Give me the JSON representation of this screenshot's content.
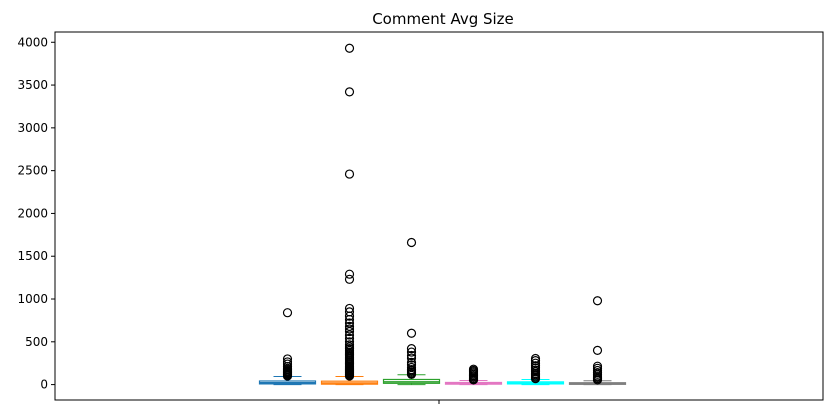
{
  "chart_data": {
    "type": "box",
    "title": "Comment Avg Size",
    "xlabel": "",
    "ylabel": "",
    "ylim": [
      -180,
      4120
    ],
    "yticks": [
      0,
      500,
      1000,
      1500,
      2000,
      2500,
      3000,
      3500,
      4000
    ],
    "xtick_labels": [
      ""
    ],
    "grid": false,
    "legend": "none",
    "series": [
      {
        "color": "#1f77b4",
        "whislo": 0,
        "q1": 8,
        "med": 22,
        "q3": 42,
        "whishi": 95,
        "fliers": [
          100,
          110,
          120,
          130,
          140,
          150,
          160,
          175,
          190,
          210,
          240,
          265,
          300,
          840
        ]
      },
      {
        "color": "#ff7f0e",
        "whislo": 0,
        "q1": 5,
        "med": 18,
        "q3": 40,
        "whishi": 95,
        "fliers": [
          100,
          110,
          120,
          130,
          140,
          150,
          160,
          170,
          180,
          190,
          200,
          215,
          230,
          245,
          260,
          275,
          290,
          305,
          320,
          335,
          350,
          365,
          380,
          400,
          420,
          440,
          465,
          500,
          540,
          580,
          620,
          650,
          680,
          720,
          760,
          800,
          850,
          890,
          1230,
          1290,
          2460,
          3420,
          3930
        ]
      },
      {
        "color": "#2ca02c",
        "whislo": 0,
        "q1": 15,
        "med": 32,
        "q3": 60,
        "whishi": 115,
        "fliers": [
          120,
          130,
          145,
          160,
          175,
          200,
          230,
          260,
          310,
          340,
          380,
          420,
          600,
          1660
        ]
      },
      {
        "color": "#e377c2",
        "whislo": 0,
        "q1": 5,
        "med": 12,
        "q3": 25,
        "whishi": 48,
        "fliers": [
          55,
          65,
          75,
          90,
          105,
          120,
          135,
          150,
          165,
          180
        ]
      },
      {
        "color": "#00ffff",
        "whislo": 0,
        "q1": 8,
        "med": 18,
        "q3": 32,
        "whishi": 60,
        "fliers": [
          70,
          85,
          100,
          115,
          130,
          150,
          170,
          195,
          220,
          250,
          280,
          305
        ]
      },
      {
        "color": "#7f7f7f",
        "whislo": 0,
        "q1": 3,
        "med": 10,
        "q3": 22,
        "whishi": 45,
        "fliers": [
          55,
          70,
          85,
          100,
          120,
          140,
          165,
          190,
          215,
          400,
          980
        ]
      }
    ]
  }
}
